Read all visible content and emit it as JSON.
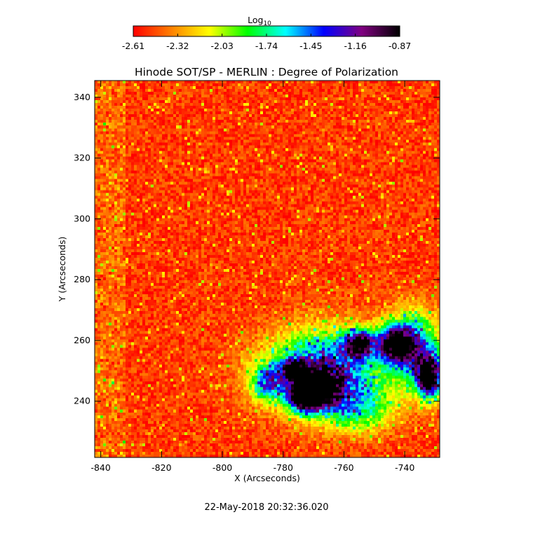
{
  "chart_data": {
    "type": "heatmap",
    "title": "Hinode SOT/SP - MERLIN : Degree of Polarization",
    "xlabel": "X (Arcseconds)",
    "ylabel": "Y (Arcseconds)",
    "xlim": [
      -842,
      -728.5
    ],
    "ylim": [
      221.5,
      345.5
    ],
    "x_ticks": [
      -840,
      -820,
      -800,
      -780,
      -760,
      -740
    ],
    "y_ticks": [
      240,
      260,
      280,
      300,
      320,
      340
    ],
    "colorbar": {
      "title": "Log",
      "title_subscript": "10",
      "range": [
        -2.61,
        -0.87
      ],
      "tick_values": [
        -2.61,
        -2.32,
        -2.03,
        -1.74,
        -1.45,
        -1.16,
        -0.87
      ],
      "tick_labels": [
        "-2.61",
        "-2.32",
        "-2.03",
        "-1.74",
        "-1.45",
        "-1.16",
        "-0.87"
      ],
      "colormap": [
        "#ff0000",
        "#ff8000",
        "#ffff00",
        "#00ff00",
        "#00ffff",
        "#0000ff",
        "#800080",
        "#000000"
      ]
    },
    "background_level": -2.5,
    "regions": [
      {
        "x": -766,
        "y": 250,
        "sx": 13,
        "sy": 9,
        "level": 0.75
      },
      {
        "x": -773,
        "y": 241,
        "sx": 3.5,
        "sy": 3,
        "level": 0.9
      },
      {
        "x": -768,
        "y": 244,
        "sx": 4,
        "sy": 4,
        "level": 0.85
      },
      {
        "x": -776,
        "y": 250,
        "sx": 2.5,
        "sy": 2.5,
        "level": 0.85
      },
      {
        "x": -755,
        "y": 259,
        "sx": 3.5,
        "sy": 3,
        "level": 0.8
      },
      {
        "x": -743,
        "y": 259,
        "sx": 4,
        "sy": 4,
        "level": 0.85
      },
      {
        "x": -732,
        "y": 248,
        "sx": 3,
        "sy": 5,
        "level": 1.0
      },
      {
        "x": -737,
        "y": 258,
        "sx": 6,
        "sy": 8,
        "level": 0.6
      },
      {
        "x": -785,
        "y": 246,
        "sx": 4,
        "sy": 4,
        "level": 0.45
      },
      {
        "x": -755,
        "y": 237,
        "sx": 8,
        "sy": 5,
        "level": 0.35
      }
    ]
  },
  "footer": {
    "timestamp": "22-May-2018 20:32:36.020"
  },
  "colors": {
    "background": "#ffffff",
    "axis": "#000000"
  }
}
